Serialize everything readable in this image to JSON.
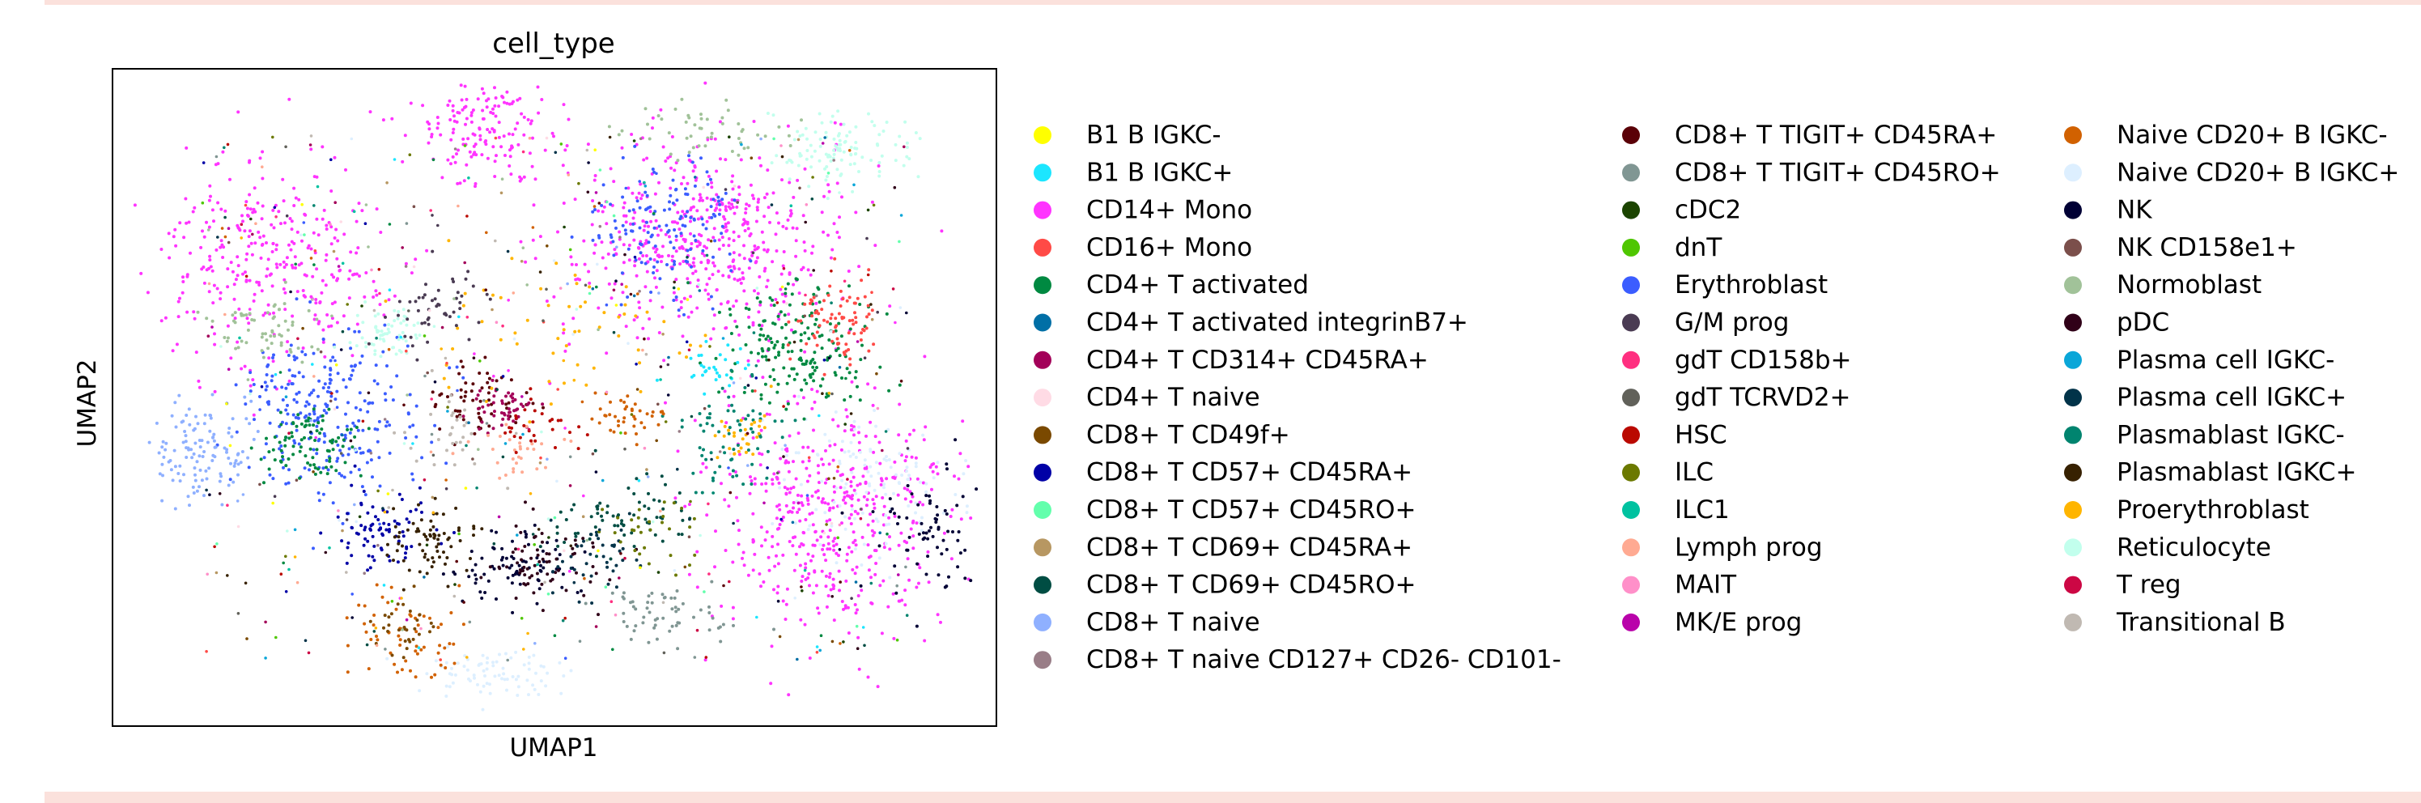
{
  "chart_data": {
    "type": "scatter",
    "title": "cell_type",
    "xlabel": "UMAP1",
    "ylabel": "UMAP2",
    "xticks": [],
    "yticks": [],
    "grid": false,
    "legend_placement": "right, 3 columns",
    "legend": [
      {
        "label": "B1 B IGKC-",
        "color": "#ffff00"
      },
      {
        "label": "B1 B IGKC+",
        "color": "#1ce6ff"
      },
      {
        "label": "CD14+ Mono",
        "color": "#ff34ff"
      },
      {
        "label": "CD16+ Mono",
        "color": "#ff4a46"
      },
      {
        "label": "CD4+ T activated",
        "color": "#008941"
      },
      {
        "label": "CD4+ T activated integrinB7+",
        "color": "#006fa6"
      },
      {
        "label": "CD4+ T CD314+ CD45RA+",
        "color": "#a30059"
      },
      {
        "label": "CD4+ T naive",
        "color": "#ffdbe5"
      },
      {
        "label": "CD8+ T CD49f+",
        "color": "#7a4900"
      },
      {
        "label": "CD8+ T CD57+ CD45RA+",
        "color": "#0000a6"
      },
      {
        "label": "CD8+ T CD57+ CD45RO+",
        "color": "#63ffac"
      },
      {
        "label": "CD8+ T CD69+ CD45RA+",
        "color": "#b79762"
      },
      {
        "label": "CD8+ T CD69+ CD45RO+",
        "color": "#004d43"
      },
      {
        "label": "CD8+ T naive",
        "color": "#8fb0ff"
      },
      {
        "label": "CD8+ T naive CD127+ CD26- CD101-",
        "color": "#997d87"
      },
      {
        "label": "CD8+ T TIGIT+ CD45RA+",
        "color": "#5a0007"
      },
      {
        "label": "CD8+ T TIGIT+ CD45RO+",
        "color": "#809693"
      },
      {
        "label": "cDC2",
        "color": "#1b4400"
      },
      {
        "label": "dnT",
        "color": "#4fc601"
      },
      {
        "label": "Erythroblast",
        "color": "#3b5dff"
      },
      {
        "label": "G/M prog",
        "color": "#4a3b53"
      },
      {
        "label": "gdT CD158b+",
        "color": "#ff2f80"
      },
      {
        "label": "gdT TCRVD2+",
        "color": "#61615a"
      },
      {
        "label": "HSC",
        "color": "#ba0900"
      },
      {
        "label": "ILC",
        "color": "#6b7900"
      },
      {
        "label": "ILC1",
        "color": "#00c2a0"
      },
      {
        "label": "Lymph prog",
        "color": "#ffaa92"
      },
      {
        "label": "MAIT",
        "color": "#ff90c9"
      },
      {
        "label": "MK/E prog",
        "color": "#b903aa"
      },
      {
        "label": "Naive CD20+ B IGKC-",
        "color": "#d16100"
      },
      {
        "label": "Naive CD20+ B IGKC+",
        "color": "#ddefff"
      },
      {
        "label": "NK",
        "color": "#000035"
      },
      {
        "label": "NK CD158e1+",
        "color": "#7b4f4b"
      },
      {
        "label": "Normoblast",
        "color": "#a1c299"
      },
      {
        "label": "pDC",
        "color": "#300018"
      },
      {
        "label": "Plasma cell IGKC-",
        "color": "#0aa6d8"
      },
      {
        "label": "Plasma cell IGKC+",
        "color": "#013349"
      },
      {
        "label": "Plasmablast IGKC-",
        "color": "#00846f"
      },
      {
        "label": "Plasmablast IGKC+",
        "color": "#372101"
      },
      {
        "label": "Proerythroblast",
        "color": "#ffb500"
      },
      {
        "label": "Reticulocyte",
        "color": "#c2ffed"
      },
      {
        "label": "T reg",
        "color": "#cc0744"
      },
      {
        "label": "Transitional B",
        "color": "#c0b9b2"
      }
    ]
  }
}
